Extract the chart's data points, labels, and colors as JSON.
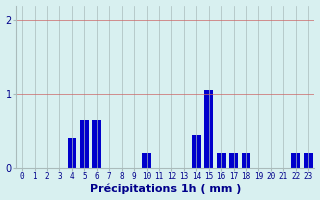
{
  "hours": [
    0,
    1,
    2,
    3,
    4,
    5,
    6,
    7,
    8,
    9,
    10,
    11,
    12,
    13,
    14,
    15,
    16,
    17,
    18,
    19,
    20,
    21,
    22,
    23
  ],
  "values": [
    0,
    0,
    0,
    0,
    0.4,
    0.65,
    0.65,
    0,
    0,
    0,
    0.2,
    0,
    0,
    0,
    0.45,
    1.05,
    0.2,
    0.2,
    0.2,
    0,
    0,
    0,
    0.2,
    0.2
  ],
  "bar_color": "#0000cc",
  "background_color": "#d8f0f0",
  "grid_color": "#aabbbb",
  "xlabel": "Précipitations 1h ( mm )",
  "ylim": [
    0,
    2.2
  ],
  "yticks": [
    0,
    1,
    2
  ],
  "xlabel_color": "#00008b",
  "tick_color": "#00008b",
  "xlabel_fontsize": 8,
  "tick_fontsize": 5.5,
  "ytick_fontsize": 7
}
